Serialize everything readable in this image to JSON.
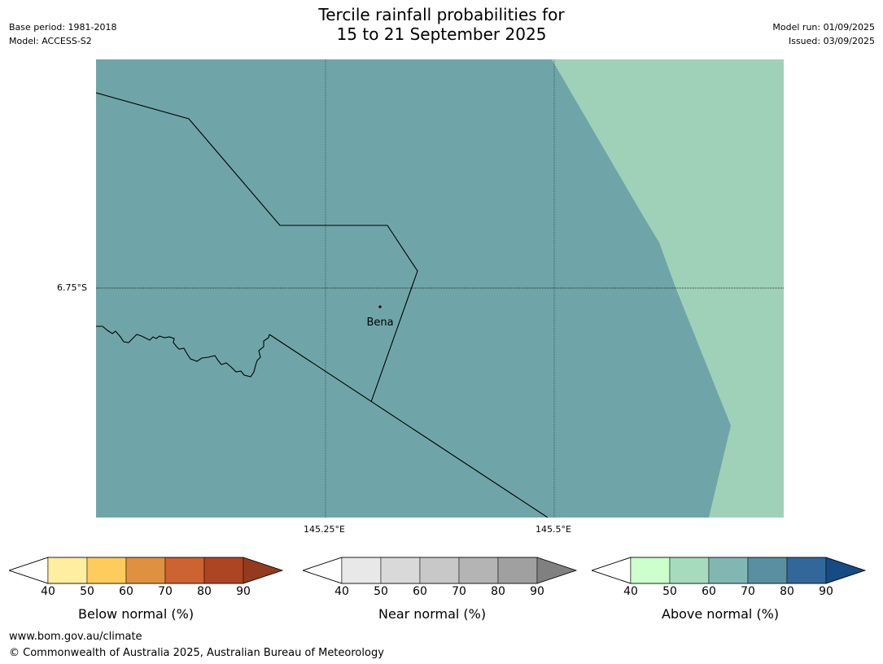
{
  "title_line1": "Tercile rainfall probabilities for",
  "title_line2": "15 to 21 September 2025",
  "meta": {
    "base_period": "Base period: 1981-2018",
    "model": "Model: ACCESS-S2",
    "model_run": "Model run: 01/09/2025",
    "issued": "Issued: 03/09/2025"
  },
  "map": {
    "lat_label": "6.75°S",
    "lon_labels": [
      "145.25°E",
      "145.5°E"
    ],
    "town": "Bena",
    "colors": {
      "main_fill": "#6fa5a8",
      "east_fill": "#9fd1b9"
    }
  },
  "colorbars": [
    {
      "label": "Below normal (%)",
      "ticks": [
        "40",
        "50",
        "60",
        "70",
        "80",
        "90"
      ],
      "colors": [
        "#ffeda0",
        "#fecc5c",
        "#e0913f",
        "#cc6331",
        "#ad4523",
        "#943a1f"
      ]
    },
    {
      "label": "Near normal (%)",
      "ticks": [
        "40",
        "50",
        "60",
        "70",
        "80",
        "90"
      ],
      "colors": [
        "#e8e8e8",
        "#d9d9d9",
        "#c8c8c8",
        "#b4b4b4",
        "#a0a0a0",
        "#808080"
      ]
    },
    {
      "label": "Above normal (%)",
      "ticks": [
        "40",
        "50",
        "60",
        "70",
        "80",
        "90"
      ],
      "colors": [
        "#ccffcc",
        "#a6dbbd",
        "#82b6b2",
        "#5a8fa2",
        "#336799",
        "#164b85"
      ]
    }
  ],
  "footer": {
    "url": "www.bom.gov.au/climate",
    "copyright": "© Commonwealth of Australia 2025, Australian Bureau of Meteorology"
  }
}
